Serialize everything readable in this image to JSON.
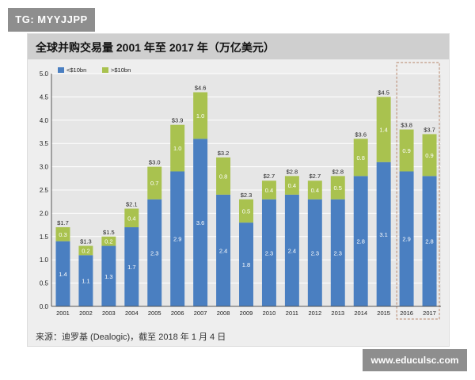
{
  "watermark": {
    "tag": "TG: MYYJJPP",
    "site": "www.educulsc.com"
  },
  "colors": {
    "small": "#4a7fc1",
    "large": "#a9c24f",
    "grid": "#ffffff",
    "axis": "#555555",
    "highlight": "#b7856a"
  },
  "chart_data": {
    "type": "bar",
    "stacked": true,
    "title": "全球并购交易量 2001 年至 2017 年（万亿美元）",
    "source": "来源：迪罗基 (Dealogic)，截至 2018 年 1 月 4 日",
    "categories": [
      "2001",
      "2002",
      "2003",
      "2004",
      "2005",
      "2006",
      "2007",
      "2008",
      "2009",
      "2010",
      "2011",
      "2012",
      "2013",
      "2014",
      "2015",
      "2016",
      "2017"
    ],
    "series": [
      {
        "name": "<$10bn",
        "values": [
          1.4,
          1.1,
          1.3,
          1.7,
          2.3,
          2.9,
          3.6,
          2.4,
          1.8,
          2.3,
          2.4,
          2.3,
          2.3,
          2.8,
          3.1,
          2.9,
          2.8
        ],
        "labels": [
          "1.4",
          "1.1",
          "1.3",
          "1.7",
          "2.3",
          "2.9",
          "3.6",
          "2.4",
          "1.8",
          "2.3",
          "2.4",
          "2.3",
          "2.3",
          "2.8",
          "3.1",
          "2.9",
          "2.8"
        ]
      },
      {
        "name": ">$10bn",
        "values": [
          0.3,
          0.2,
          0.2,
          0.4,
          0.7,
          1.0,
          1.0,
          0.8,
          0.5,
          0.4,
          0.4,
          0.4,
          0.5,
          0.8,
          1.4,
          0.9,
          0.9
        ],
        "labels": [
          "0.3",
          "0.2",
          "0.2",
          "0.4",
          "0.7",
          "1.0",
          "1.0",
          "0.8",
          "0.5",
          "0.4",
          "0.4",
          "0.4",
          "0.5",
          "0.8",
          "1.4",
          "0.9",
          "0.9"
        ]
      }
    ],
    "totals": [
      "$1.7",
      "$1.3",
      "$1.5",
      "$2.1",
      "$3.0",
      "$3.9",
      "$4.6",
      "$3.2",
      "$2.3",
      "$2.7",
      "$2.8",
      "$2.7",
      "$2.8",
      "$3.6",
      "$4.5",
      "$3.8",
      "$3.7"
    ],
    "ylim": [
      0,
      5
    ],
    "yticks": [
      "0.0",
      "0.5",
      "1.0",
      "1.5",
      "2.0",
      "2.5",
      "3.0",
      "3.5",
      "4.0",
      "4.5",
      "5.0"
    ],
    "yticks_values": [
      0,
      0.5,
      1,
      1.5,
      2,
      2.5,
      3,
      3.5,
      4,
      4.5,
      5
    ],
    "grid": true,
    "legend": "top-left",
    "highlight_categories": [
      "2016",
      "2017"
    ]
  }
}
